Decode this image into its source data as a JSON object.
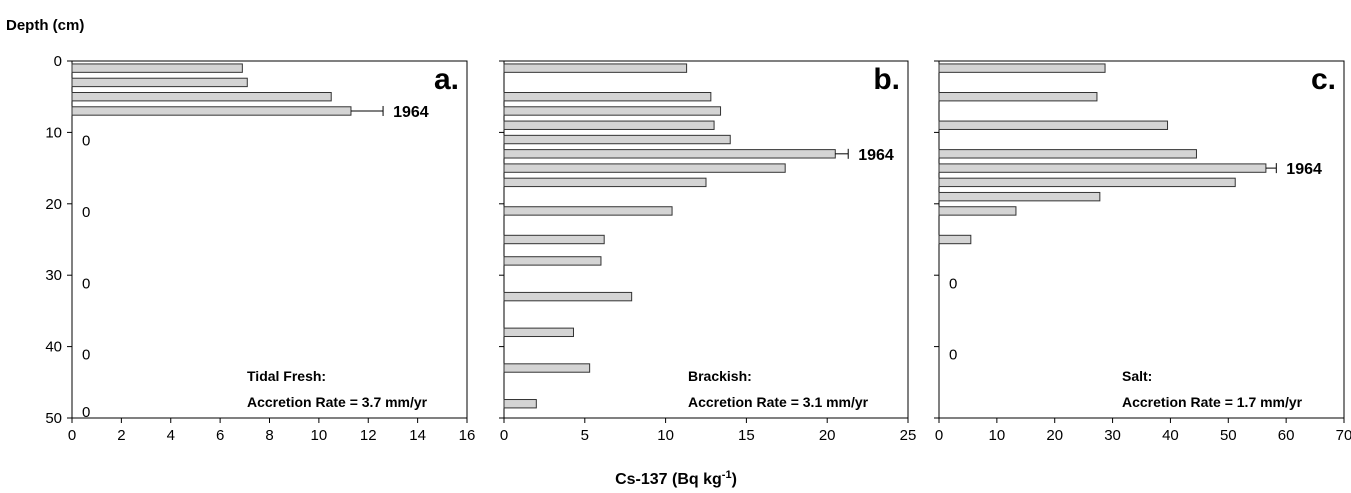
{
  "figure": {
    "y_axis_title": "Depth (cm)",
    "x_axis_title": "Cs-137 (Bq kg",
    "x_axis_title_sup": "-1",
    "x_axis_title_close": ")"
  },
  "colors": {
    "bar_fill": "#d4d4d4",
    "bar_stroke": "#333333",
    "axis": "#000000"
  },
  "chart_data": [
    {
      "type": "bar",
      "orientation": "horizontal",
      "panel_letter": "a.",
      "site_label": "Tidal Fresh:",
      "rate_label": "Accretion Rate = 3.7 mm/yr",
      "marker_label": "1964",
      "marker_depth": 7,
      "marker_error": 1.3,
      "xlim": [
        0,
        16
      ],
      "x_ticks": [
        "0",
        "2",
        "4",
        "6",
        "8",
        "10",
        "12",
        "14",
        "16"
      ],
      "ylim": [
        0,
        50
      ],
      "y_ticks": [
        "0",
        "10",
        "20",
        "30",
        "40",
        "50"
      ],
      "bars": [
        {
          "depth": 1,
          "value": 6.9
        },
        {
          "depth": 3,
          "value": 7.1
        },
        {
          "depth": 5,
          "value": 10.5
        },
        {
          "depth": 7,
          "value": 11.3
        }
      ],
      "zeros": [
        {
          "depth": 11,
          "label": "0"
        },
        {
          "depth": 21,
          "label": "0"
        },
        {
          "depth": 31,
          "label": "0"
        },
        {
          "depth": 41,
          "label": "0"
        },
        {
          "depth": 49,
          "label": "0"
        }
      ]
    },
    {
      "type": "bar",
      "orientation": "horizontal",
      "panel_letter": "b.",
      "site_label": "Brackish:",
      "rate_label": "Accretion Rate = 3.1 mm/yr",
      "marker_label": "1964",
      "marker_depth": 13,
      "marker_error": 0.8,
      "xlim": [
        0,
        25
      ],
      "x_ticks": [
        "0",
        "5",
        "10",
        "15",
        "20",
        "25"
      ],
      "ylim": [
        0,
        50
      ],
      "y_ticks": [
        "",
        "",
        "",
        "",
        "",
        ""
      ],
      "bars": [
        {
          "depth": 1,
          "value": 11.3
        },
        {
          "depth": 5,
          "value": 12.8
        },
        {
          "depth": 7,
          "value": 13.4
        },
        {
          "depth": 9,
          "value": 13.0
        },
        {
          "depth": 11,
          "value": 14.0
        },
        {
          "depth": 13,
          "value": 20.5
        },
        {
          "depth": 15,
          "value": 17.4
        },
        {
          "depth": 17,
          "value": 12.5
        },
        {
          "depth": 21,
          "value": 10.4
        },
        {
          "depth": 25,
          "value": 6.2
        },
        {
          "depth": 28,
          "value": 6.0
        },
        {
          "depth": 33,
          "value": 7.9
        },
        {
          "depth": 38,
          "value": 4.3
        },
        {
          "depth": 43,
          "value": 5.3
        },
        {
          "depth": 48,
          "value": 2.0
        }
      ],
      "zeros": []
    },
    {
      "type": "bar",
      "orientation": "horizontal",
      "panel_letter": "c.",
      "site_label": "Salt:",
      "rate_label": "Accretion Rate = 1.7 mm/yr",
      "marker_label": "1964",
      "marker_depth": 15,
      "marker_error": 1.8,
      "xlim": [
        0,
        70
      ],
      "x_ticks": [
        "0",
        "10",
        "20",
        "30",
        "40",
        "50",
        "60",
        "70"
      ],
      "ylim": [
        0,
        50
      ],
      "y_ticks": [
        "",
        "",
        "",
        "",
        "",
        ""
      ],
      "bars": [
        {
          "depth": 1,
          "value": 28.7
        },
        {
          "depth": 5,
          "value": 27.3
        },
        {
          "depth": 9,
          "value": 39.5
        },
        {
          "depth": 13,
          "value": 44.5
        },
        {
          "depth": 15,
          "value": 56.5
        },
        {
          "depth": 17,
          "value": 51.2
        },
        {
          "depth": 19,
          "value": 27.8
        },
        {
          "depth": 21,
          "value": 13.3
        },
        {
          "depth": 25,
          "value": 5.5
        }
      ],
      "zeros": [
        {
          "depth": 31,
          "label": "0"
        },
        {
          "depth": 41,
          "label": "0"
        }
      ]
    }
  ]
}
